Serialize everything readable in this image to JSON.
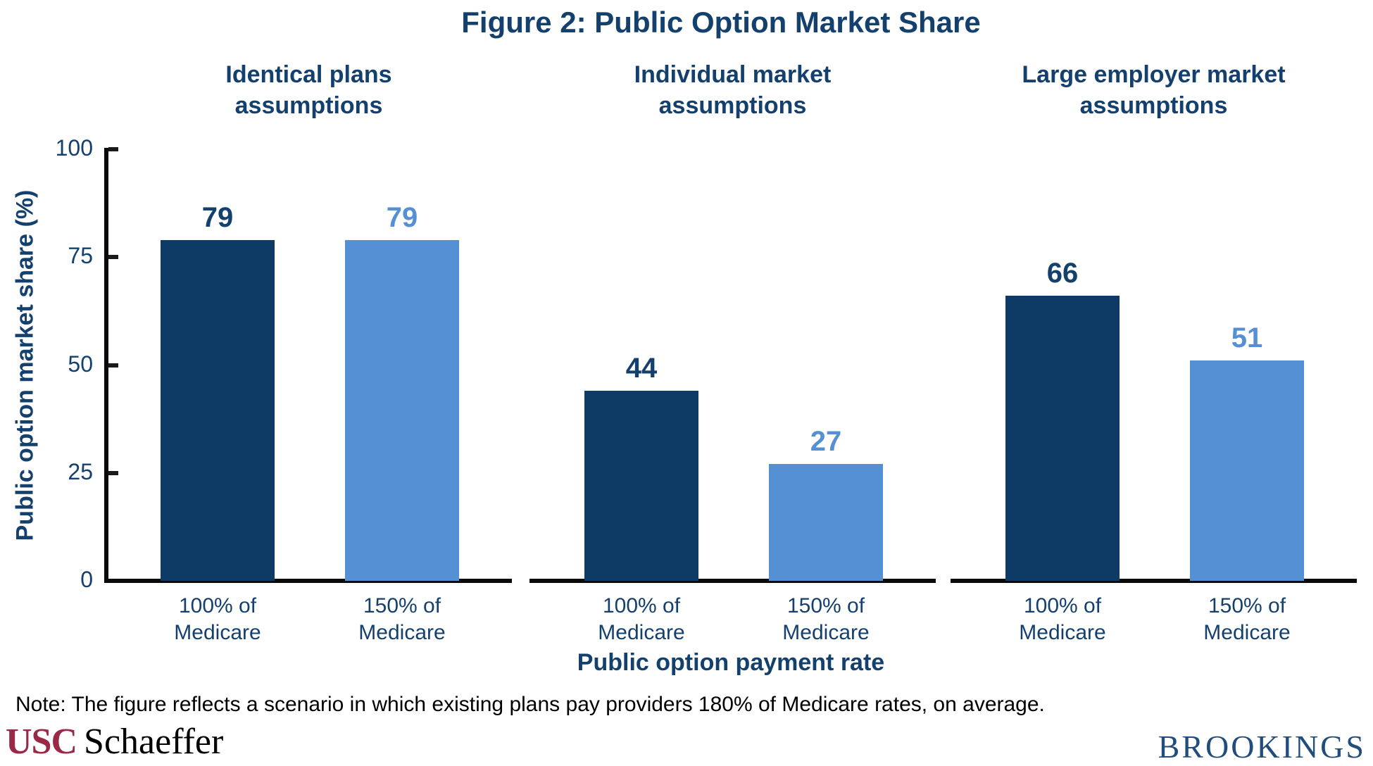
{
  "figure": {
    "title": "Figure 2: Public Option Market Share",
    "note": "Note: The figure reflects a scenario in which existing plans pay providers 180% of Medicare rates, on average.",
    "logos": {
      "usc": "USC",
      "schaeffer": "Schaeffer",
      "brookings": "BROOKINGS"
    }
  },
  "chart_data": {
    "type": "bar",
    "title": "Figure 2: Public Option Market Share",
    "ylabel": "Public option market share (%)",
    "xlabel": "Public option payment rate",
    "ylim": [
      0,
      100
    ],
    "yticks": [
      0,
      25,
      50,
      75,
      100
    ],
    "grid": false,
    "legend": "none",
    "categories": [
      "100% of Medicare",
      "150% of Medicare"
    ],
    "category_labels_lines": [
      [
        "100% of",
        "Medicare"
      ],
      [
        "150% of",
        "Medicare"
      ]
    ],
    "bar_colors_by_category": [
      "#0D3B66",
      "#5590D5"
    ],
    "value_label_colors_by_category": [
      "#14406E",
      "#5590D5"
    ],
    "panels": [
      {
        "title": "Identical plans assumptions",
        "title_lines": [
          "Identical plans",
          "assumptions"
        ],
        "series_name": "Public option market share (%)",
        "values": [
          79,
          79
        ]
      },
      {
        "title": "Individual market assumptions",
        "title_lines": [
          "Individual market",
          "assumptions"
        ],
        "series_name": "Public option market share (%)",
        "values": [
          44,
          27
        ]
      },
      {
        "title": "Large employer market assumptions",
        "title_lines": [
          "Large employer market",
          "assumptions"
        ],
        "series_name": "Public option market share (%)",
        "values": [
          66,
          51
        ]
      }
    ]
  }
}
